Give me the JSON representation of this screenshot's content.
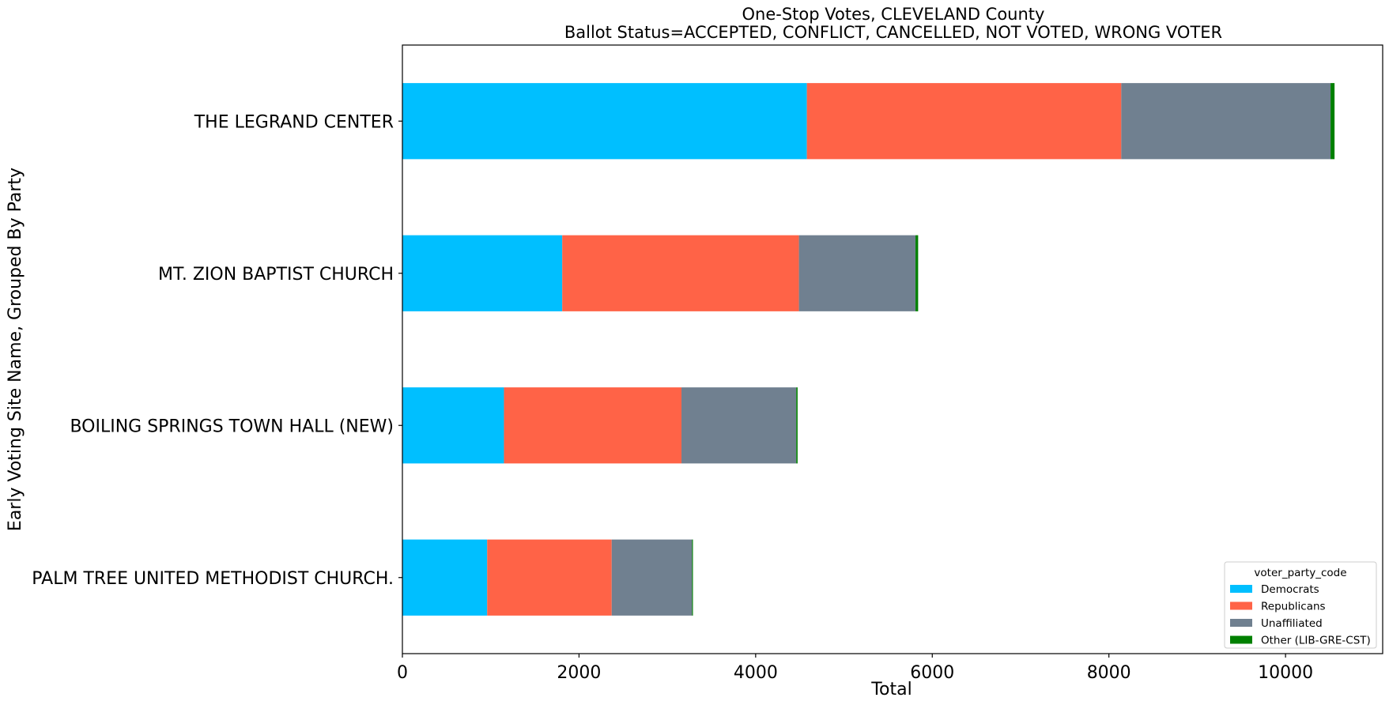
{
  "chart_data": {
    "type": "bar",
    "orientation": "horizontal",
    "stacked": true,
    "title": "One-Stop Votes, CLEVELAND County",
    "subtitle": "Ballot Status=ACCEPTED, CONFLICT, CANCELLED, NOT VOTED, WRONG VOTER",
    "xlabel": "Total",
    "ylabel": "Early Voting Site Name, Grouped By Party",
    "xlim": [
      0,
      11100
    ],
    "xticks": [
      0,
      2000,
      4000,
      6000,
      8000,
      10000
    ],
    "xtick_labels": [
      "0",
      "2000",
      "4000",
      "6000",
      "8000",
      "10000"
    ],
    "grid": false,
    "categories": [
      "THE LEGRAND CENTER",
      "MT. ZION BAPTIST CHURCH",
      "BOILING SPRINGS TOWN HALL (NEW)",
      "PALM TREE UNITED METHODIST CHURCH."
    ],
    "series": [
      {
        "name": "Democrats",
        "color": "#00BFFF",
        "values": [
          4580,
          1810,
          1150,
          960
        ]
      },
      {
        "name": "Republicans",
        "color": "#FF6347",
        "values": [
          3560,
          2680,
          2010,
          1410
        ]
      },
      {
        "name": "Unaffiliated",
        "color": "#708090",
        "values": [
          2370,
          1320,
          1300,
          910
        ]
      },
      {
        "name": "Other (LIB-GRE-CST)",
        "color": "#008000",
        "values": [
          45,
          30,
          15,
          10
        ]
      }
    ],
    "legend": {
      "title": "voter_party_code",
      "position": "lower-right"
    }
  }
}
